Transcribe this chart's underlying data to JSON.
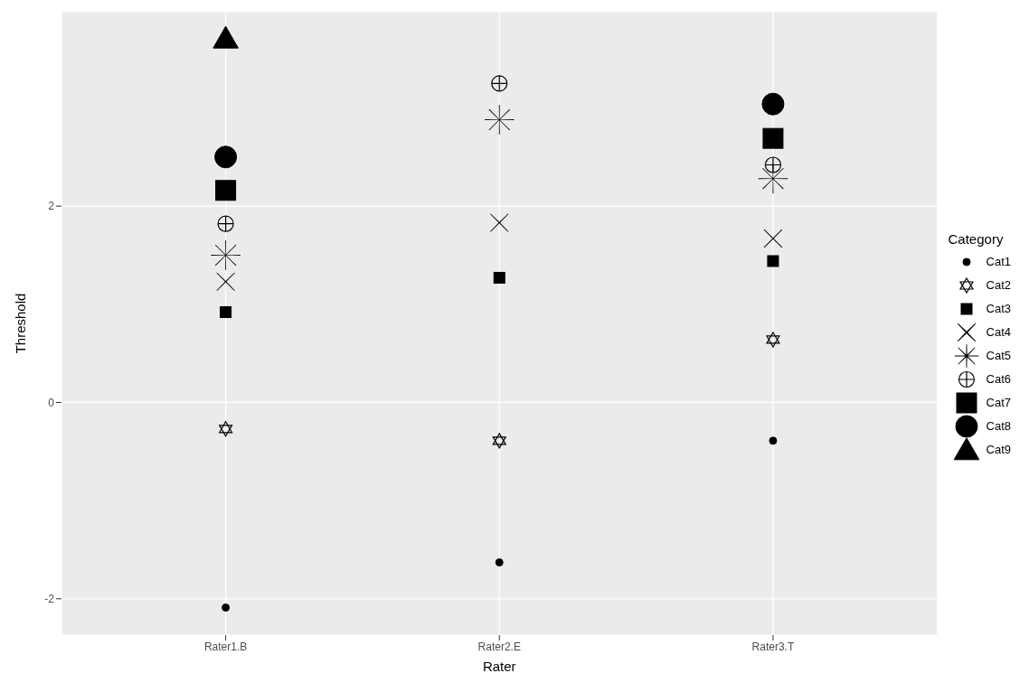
{
  "chart_data": {
    "type": "scatter",
    "xlabel": "Rater",
    "ylabel": "Threshold",
    "legend_title": "Category",
    "legend": "right",
    "grid": true,
    "categories": [
      "Rater1.B",
      "Rater2.E",
      "Rater3.T"
    ],
    "ylim": [
      -2.37,
      3.98
    ],
    "yticks": [
      -2,
      0,
      2
    ],
    "series": [
      {
        "name": "Cat1",
        "color": "#000000",
        "marker": "circle",
        "values": [
          -2.09,
          -1.63,
          -0.39
        ]
      },
      {
        "name": "Cat2",
        "color": "#000000",
        "marker": "star",
        "values": [
          -0.27,
          -0.39,
          0.64
        ]
      },
      {
        "name": "Cat3",
        "color": "#000000",
        "marker": "square",
        "values": [
          0.92,
          1.27,
          1.44
        ]
      },
      {
        "name": "Cat4",
        "color": "#000000",
        "marker": "cross",
        "values": [
          1.23,
          1.83,
          1.67
        ]
      },
      {
        "name": "Cat5",
        "color": "#000000",
        "marker": "star",
        "values": [
          1.5,
          2.88,
          2.28
        ]
      },
      {
        "name": "Cat6",
        "color": "#000000",
        "marker": "circle",
        "values": [
          1.82,
          3.25,
          2.42
        ]
      },
      {
        "name": "Cat7",
        "color": "#000000",
        "marker": "square",
        "values": [
          2.16,
          null,
          2.69
        ]
      },
      {
        "name": "Cat8",
        "color": "#000000",
        "marker": "circle",
        "values": [
          2.5,
          null,
          3.04
        ]
      },
      {
        "name": "Cat9",
        "color": "#000000",
        "marker": "triangle",
        "values": [
          3.71,
          null,
          null
        ]
      }
    ]
  }
}
